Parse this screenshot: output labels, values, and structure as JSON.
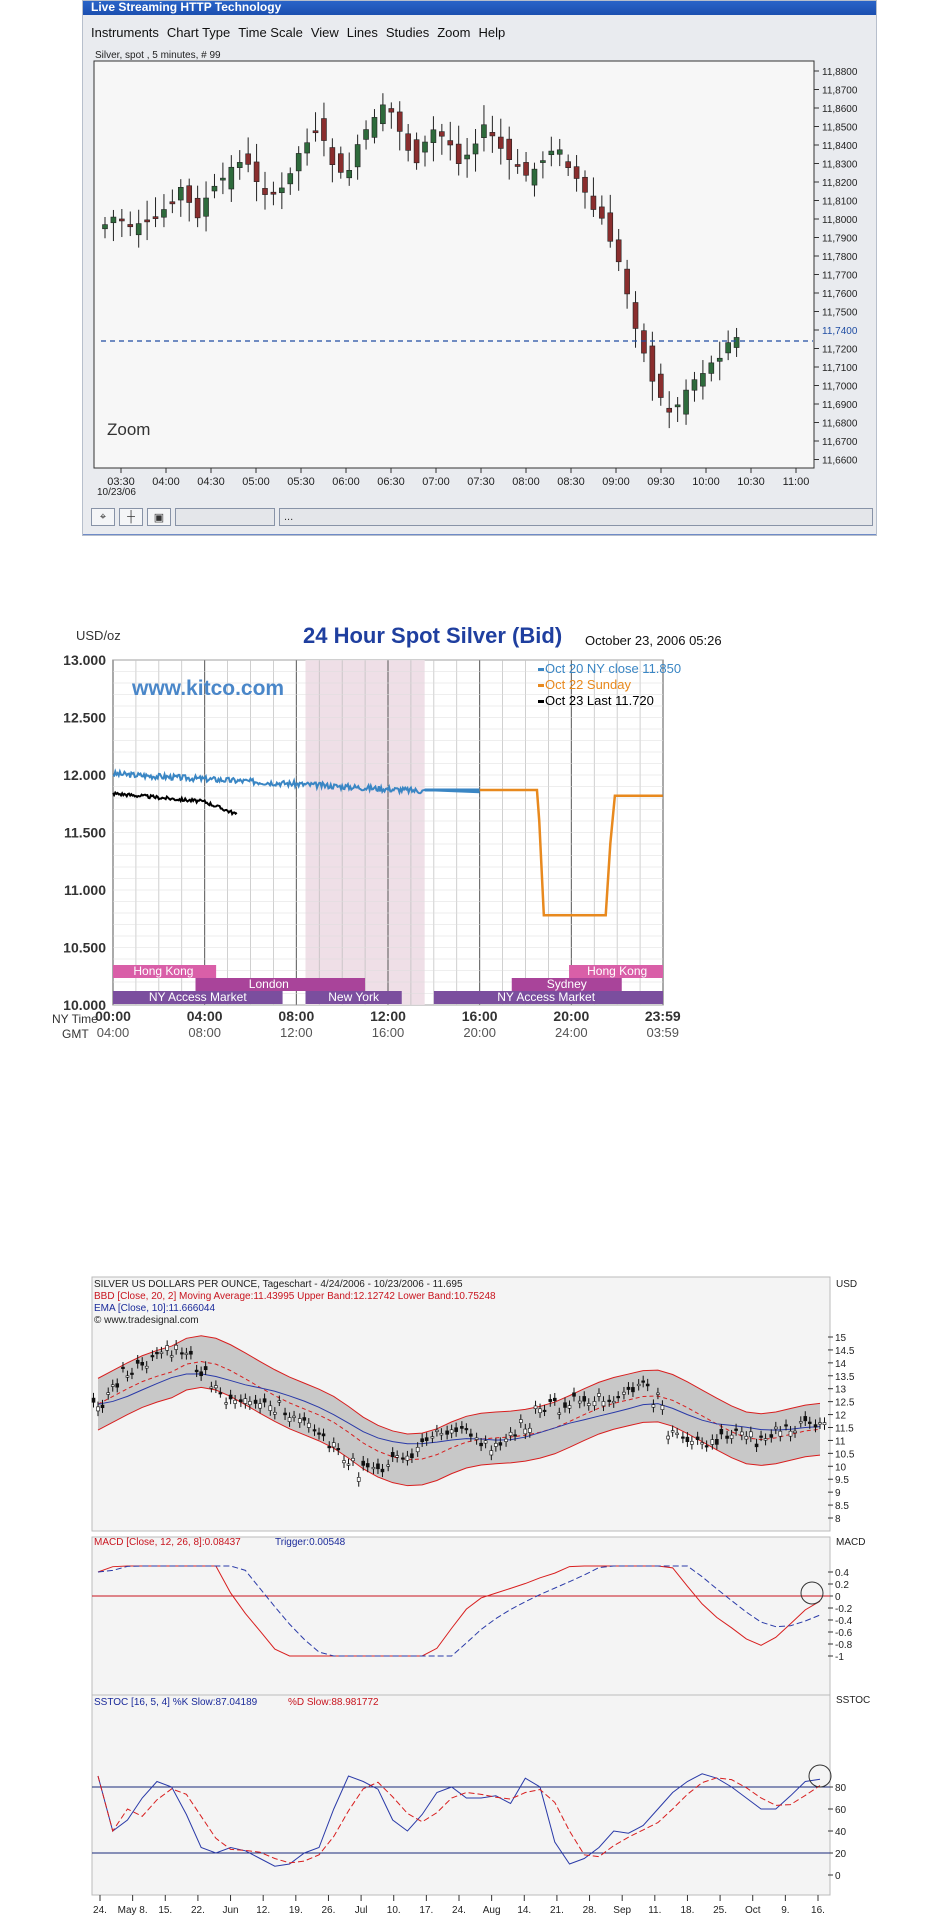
{
  "app": {
    "title": "Live Streaming HTTP Technology",
    "menu": [
      "Instruments",
      "Chart Type",
      "Time Scale",
      "View",
      "Lines",
      "Studies",
      "Zoom",
      "Help"
    ],
    "status_extra": "..."
  },
  "chart1": {
    "label": "Silver, spot , 5 minutes, # 99",
    "zoom_label": "Zoom",
    "date": "10/23/06",
    "yticks": [
      "11,8800",
      "11,8700",
      "11,8600",
      "11,8500",
      "11,8400",
      "11,8300",
      "11,8200",
      "11,8100",
      "11,8000",
      "11,7900",
      "11,7800",
      "11,7700",
      "11,7600",
      "11,7500",
      "11,7400",
      "11,7200",
      "11,7100",
      "11,7000",
      "11,6900",
      "11,6800",
      "11,6700",
      "11,6600"
    ],
    "xticks": [
      "03:30",
      "04:00",
      "04:30",
      "05:00",
      "05:30",
      "06:00",
      "06:30",
      "07:00",
      "07:30",
      "08:00",
      "08:30",
      "09:00",
      "09:30",
      "10:00",
      "10:30",
      "11:00"
    ],
    "last_price": "11,7400"
  },
  "kitco": {
    "unit": "USD/oz",
    "title": "24 Hour Spot Silver (Bid)",
    "date": "October 23, 2006 05:26",
    "watermark": "www.kitco.com",
    "legend": [
      {
        "label": "Oct 20 NY close 11.850",
        "color": "#3a86c4"
      },
      {
        "label": "Oct 22 Sunday",
        "color": "#e8891e"
      },
      {
        "label": "Oct 23 Last 11.720",
        "color": "#000000"
      }
    ],
    "yticks": [
      "13.000",
      "12.500",
      "12.000",
      "11.500",
      "11.000",
      "10.500",
      "10.000"
    ],
    "ny_label": "NY Time",
    "gmt_label": "GMT",
    "ny_ticks": [
      "00:00",
      "04:00",
      "08:00",
      "12:00",
      "16:00",
      "20:00",
      "23:59"
    ],
    "gmt_ticks": [
      "04:00",
      "08:00",
      "12:00",
      "16:00",
      "20:00",
      "24:00",
      "03:59"
    ],
    "markets": [
      "Hong Kong",
      "London",
      "NY Access Market",
      "New York",
      "NY Access Market",
      "Sydney",
      "Hong Kong"
    ]
  },
  "tradesignal": {
    "title": "SILVER US DOLLARS PER OUNCE, Tageschart - 4/24/2006 - 10/23/2006 - 11.695",
    "bbd": "BBD [Close, 20, 2] Moving Average:11.43995 Upper Band:12.12742 Lower Band:10.75248",
    "ema": "EMA [Close, 10]:11.666044",
    "copyright": "© www.tradesignal.com",
    "usd": "USD",
    "price_ticks": [
      "15",
      "14.5",
      "14",
      "13.5",
      "13",
      "12.5",
      "12",
      "11.5",
      "11",
      "10.5",
      "10",
      "9.5",
      "9",
      "8.5",
      "8"
    ],
    "macd_title": "MACD [Close, 12, 26, 8]:0.08437",
    "macd_trigger": "Trigger:0.00548",
    "macd_label": "MACD",
    "macd_ticks": [
      "0.4",
      "0.2",
      "0",
      "-0.2",
      "-0.4",
      "-0.6",
      "-0.8",
      "-1"
    ],
    "sstoc_k": "SSTOC [16, 5, 4] %K Slow:87.04189",
    "sstoc_d": "%D Slow:88.981772",
    "sstoc_label": "SSTOC",
    "sstoc_ticks": [
      "80",
      "60",
      "40",
      "20",
      "0"
    ],
    "xticks": [
      "24.",
      "May 8.",
      "15.",
      "22.",
      "Jun",
      "12.",
      "19.",
      "26.",
      "Jul",
      "10.",
      "17.",
      "24.",
      "Aug",
      "14.",
      "21.",
      "28.",
      "Sep",
      "11.",
      "18.",
      "25.",
      "Oct",
      "9.",
      "16."
    ]
  }
}
